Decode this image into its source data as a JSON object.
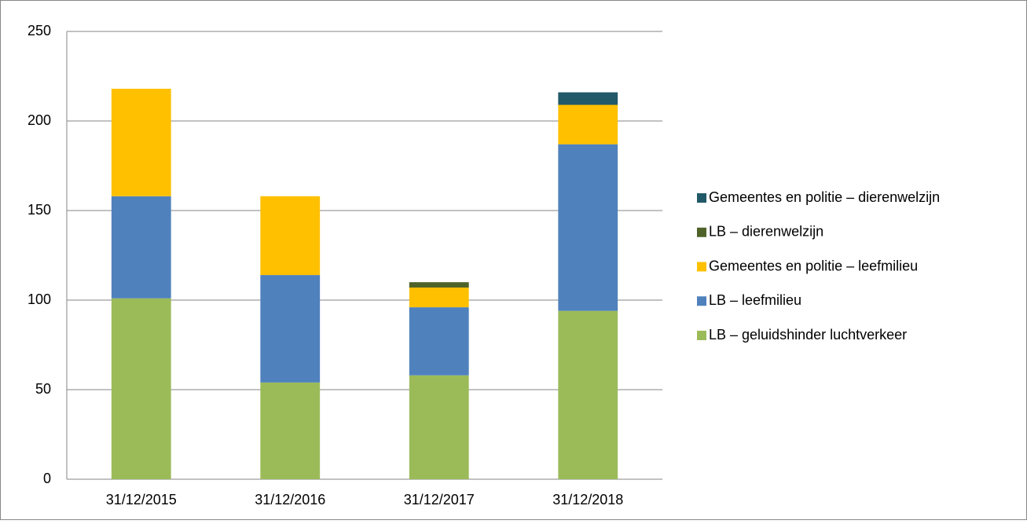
{
  "chart_data": {
    "type": "stacked_bar",
    "categories": [
      "31/12/2015",
      "31/12/2016",
      "31/12/2017",
      "31/12/2018"
    ],
    "series": [
      {
        "name": "LB – geluidshinder luchtverkeer",
        "color": "#9bbb59",
        "values": [
          101,
          54,
          58,
          94
        ]
      },
      {
        "name": "LB – leefmilieu",
        "color": "#4f81bd",
        "values": [
          57,
          60,
          38,
          93
        ]
      },
      {
        "name": "Gemeentes en politie – leefmilieu",
        "color": "#ffc000",
        "values": [
          60,
          44,
          11,
          22
        ]
      },
      {
        "name": "LB – dierenwelzijn",
        "color": "#4f6228",
        "values": [
          0,
          0,
          3,
          0
        ]
      },
      {
        "name": "Gemeentes en politie – dierenwelzijn",
        "color": "#215968",
        "values": [
          0,
          0,
          0,
          7
        ]
      }
    ],
    "ylim": [
      0,
      250
    ],
    "yticks": [
      0,
      50,
      100,
      150,
      200,
      250
    ],
    "grid": true,
    "legend": "right"
  }
}
